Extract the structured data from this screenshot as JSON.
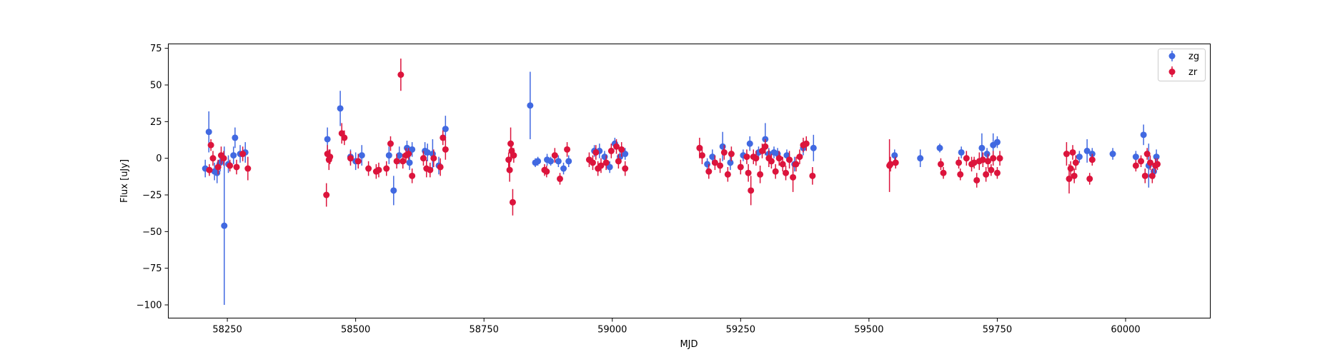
{
  "chart_data": {
    "type": "scatter",
    "title": "",
    "xlabel": "MJD",
    "ylabel": "Flux [uJy]",
    "xlim": [
      58135,
      60165
    ],
    "ylim": [
      -109,
      78
    ],
    "xticks": [
      58250,
      58500,
      58750,
      59000,
      59250,
      59500,
      59750,
      60000
    ],
    "yticks": [
      75,
      50,
      25,
      0,
      -25,
      -50,
      -75,
      -100
    ],
    "ytick_labels": [
      "75",
      "50",
      "25",
      "0",
      "−25",
      "−50",
      "−75",
      "−100"
    ],
    "grid": false,
    "legend": {
      "placement": "top-right"
    },
    "colors": {
      "zg": "#4169e1",
      "zr": "#dc143c"
    },
    "series": [
      {
        "name": "zg",
        "points": [
          {
            "x": 58207,
            "y": -7,
            "err": 6
          },
          {
            "x": 58214,
            "y": 18,
            "err": 14
          },
          {
            "x": 58225,
            "y": -9,
            "err": 6
          },
          {
            "x": 58230,
            "y": -10,
            "err": 7
          },
          {
            "x": 58236,
            "y": -3,
            "err": 6
          },
          {
            "x": 58244,
            "y": -46,
            "err": 54
          },
          {
            "x": 58252,
            "y": -4,
            "err": 6
          },
          {
            "x": 58262,
            "y": 2,
            "err": 6
          },
          {
            "x": 58265,
            "y": 14,
            "err": 7
          },
          {
            "x": 58275,
            "y": 3,
            "err": 6
          },
          {
            "x": 58285,
            "y": 4,
            "err": 7
          },
          {
            "x": 58445,
            "y": 13,
            "err": 8
          },
          {
            "x": 58470,
            "y": 34,
            "err": 12
          },
          {
            "x": 58490,
            "y": 1,
            "err": 5
          },
          {
            "x": 58500,
            "y": -2,
            "err": 6
          },
          {
            "x": 58512,
            "y": 2,
            "err": 7
          },
          {
            "x": 58565,
            "y": 2,
            "err": 6
          },
          {
            "x": 58574,
            "y": -22,
            "err": 10
          },
          {
            "x": 58585,
            "y": 2,
            "err": 6
          },
          {
            "x": 58600,
            "y": 7,
            "err": 5
          },
          {
            "x": 58605,
            "y": -3,
            "err": 5
          },
          {
            "x": 58610,
            "y": 6,
            "err": 5
          },
          {
            "x": 58635,
            "y": 5,
            "err": 6
          },
          {
            "x": 58640,
            "y": 4,
            "err": 6
          },
          {
            "x": 58650,
            "y": 3,
            "err": 10
          },
          {
            "x": 58662,
            "y": -5,
            "err": 6
          },
          {
            "x": 58675,
            "y": 20,
            "err": 9
          },
          {
            "x": 58840,
            "y": 36,
            "err": 23
          },
          {
            "x": 58850,
            "y": -3,
            "err": 3
          },
          {
            "x": 58855,
            "y": -2,
            "err": 3
          },
          {
            "x": 58873,
            "y": -1,
            "err": 4
          },
          {
            "x": 58880,
            "y": -2,
            "err": 3
          },
          {
            "x": 58895,
            "y": -2,
            "err": 4
          },
          {
            "x": 58905,
            "y": -7,
            "err": 4
          },
          {
            "x": 58915,
            "y": -2,
            "err": 4
          },
          {
            "x": 58965,
            "y": 5,
            "err": 4
          },
          {
            "x": 58975,
            "y": 5,
            "err": 5
          },
          {
            "x": 58985,
            "y": 1,
            "err": 4
          },
          {
            "x": 58995,
            "y": -6,
            "err": 4
          },
          {
            "x": 59005,
            "y": 10,
            "err": 4
          },
          {
            "x": 59015,
            "y": 1,
            "err": 4
          },
          {
            "x": 59025,
            "y": 3,
            "err": 4
          },
          {
            "x": 59185,
            "y": -4,
            "err": 4
          },
          {
            "x": 59195,
            "y": 1,
            "err": 5
          },
          {
            "x": 59215,
            "y": 8,
            "err": 10
          },
          {
            "x": 59230,
            "y": -3,
            "err": 5
          },
          {
            "x": 59255,
            "y": 2,
            "err": 4
          },
          {
            "x": 59268,
            "y": 10,
            "err": 5
          },
          {
            "x": 59285,
            "y": 4,
            "err": 4
          },
          {
            "x": 59298,
            "y": 13,
            "err": 11
          },
          {
            "x": 59305,
            "y": 3,
            "err": 4
          },
          {
            "x": 59315,
            "y": 4,
            "err": 4
          },
          {
            "x": 59322,
            "y": 3,
            "err": 4
          },
          {
            "x": 59340,
            "y": 2,
            "err": 4
          },
          {
            "x": 59355,
            "y": -4,
            "err": 5
          },
          {
            "x": 59372,
            "y": 7,
            "err": 5
          },
          {
            "x": 59392,
            "y": 7,
            "err": 9
          },
          {
            "x": 59550,
            "y": 2,
            "err": 4
          },
          {
            "x": 59600,
            "y": 0,
            "err": 6
          },
          {
            "x": 59638,
            "y": 7,
            "err": 3
          },
          {
            "x": 59680,
            "y": 4,
            "err": 4
          },
          {
            "x": 59720,
            "y": 7,
            "err": 10
          },
          {
            "x": 59730,
            "y": 3,
            "err": 4
          },
          {
            "x": 59742,
            "y": 9,
            "err": 8
          },
          {
            "x": 59750,
            "y": 11,
            "err": 4
          },
          {
            "x": 59910,
            "y": 1,
            "err": 4
          },
          {
            "x": 59925,
            "y": 5,
            "err": 8
          },
          {
            "x": 59935,
            "y": 3,
            "err": 4
          },
          {
            "x": 59975,
            "y": 3,
            "err": 4
          },
          {
            "x": 60020,
            "y": 1,
            "err": 4
          },
          {
            "x": 60035,
            "y": 16,
            "err": 7
          },
          {
            "x": 60045,
            "y": -5,
            "err": 15
          },
          {
            "x": 60055,
            "y": -9,
            "err": 5
          },
          {
            "x": 60060,
            "y": 1,
            "err": 5
          }
        ]
      },
      {
        "name": "zr",
        "points": [
          {
            "x": 58215,
            "y": -8,
            "err": 4
          },
          {
            "x": 58218,
            "y": 9,
            "err": 4
          },
          {
            "x": 58222,
            "y": 0,
            "err": 5
          },
          {
            "x": 58232,
            "y": -6,
            "err": 5
          },
          {
            "x": 58238,
            "y": 2,
            "err": 6
          },
          {
            "x": 58243,
            "y": 0,
            "err": 5
          },
          {
            "x": 58255,
            "y": -5,
            "err": 4
          },
          {
            "x": 58268,
            "y": -6,
            "err": 5
          },
          {
            "x": 58280,
            "y": 3,
            "err": 5
          },
          {
            "x": 58290,
            "y": -7,
            "err": 8
          },
          {
            "x": 58443,
            "y": -25,
            "err": 8
          },
          {
            "x": 58445,
            "y": 3,
            "err": 6
          },
          {
            "x": 58448,
            "y": -1,
            "err": 7
          },
          {
            "x": 58450,
            "y": 1,
            "err": 5
          },
          {
            "x": 58473,
            "y": 17,
            "err": 7
          },
          {
            "x": 58478,
            "y": 14,
            "err": 5
          },
          {
            "x": 58490,
            "y": 0,
            "err": 5
          },
          {
            "x": 58505,
            "y": -2,
            "err": 5
          },
          {
            "x": 58525,
            "y": -7,
            "err": 5
          },
          {
            "x": 58540,
            "y": -9,
            "err": 5
          },
          {
            "x": 58545,
            "y": -8,
            "err": 5
          },
          {
            "x": 58560,
            "y": -7,
            "err": 5
          },
          {
            "x": 58568,
            "y": 10,
            "err": 5
          },
          {
            "x": 58580,
            "y": -2,
            "err": 5
          },
          {
            "x": 58588,
            "y": 57,
            "err": 11
          },
          {
            "x": 58592,
            "y": -2,
            "err": 5
          },
          {
            "x": 58598,
            "y": 2,
            "err": 5
          },
          {
            "x": 58603,
            "y": 3,
            "err": 4
          },
          {
            "x": 58610,
            "y": -12,
            "err": 5
          },
          {
            "x": 58632,
            "y": 0,
            "err": 5
          },
          {
            "x": 58638,
            "y": -7,
            "err": 6
          },
          {
            "x": 58645,
            "y": -8,
            "err": 5
          },
          {
            "x": 58652,
            "y": 0,
            "err": 6
          },
          {
            "x": 58665,
            "y": -6,
            "err": 6
          },
          {
            "x": 58670,
            "y": 14,
            "err": 5
          },
          {
            "x": 58675,
            "y": 6,
            "err": 7
          },
          {
            "x": 58798,
            "y": -1,
            "err": 5
          },
          {
            "x": 58800,
            "y": -8,
            "err": 8
          },
          {
            "x": 58802,
            "y": 10,
            "err": 11
          },
          {
            "x": 58804,
            "y": 5,
            "err": 6
          },
          {
            "x": 58806,
            "y": -30,
            "err": 9
          },
          {
            "x": 58808,
            "y": 2,
            "err": 5
          },
          {
            "x": 58868,
            "y": -8,
            "err": 4
          },
          {
            "x": 58872,
            "y": -9,
            "err": 4
          },
          {
            "x": 58888,
            "y": 2,
            "err": 5
          },
          {
            "x": 58898,
            "y": -14,
            "err": 4
          },
          {
            "x": 58912,
            "y": 6,
            "err": 5
          },
          {
            "x": 58955,
            "y": -1,
            "err": 5
          },
          {
            "x": 58962,
            "y": -3,
            "err": 5
          },
          {
            "x": 58968,
            "y": 4,
            "err": 5
          },
          {
            "x": 58972,
            "y": -7,
            "err": 5
          },
          {
            "x": 58978,
            "y": -5,
            "err": 5
          },
          {
            "x": 58988,
            "y": -3,
            "err": 5
          },
          {
            "x": 58998,
            "y": 5,
            "err": 5
          },
          {
            "x": 59008,
            "y": 8,
            "err": 5
          },
          {
            "x": 59012,
            "y": -2,
            "err": 5
          },
          {
            "x": 59018,
            "y": 6,
            "err": 5
          },
          {
            "x": 59025,
            "y": -7,
            "err": 5
          },
          {
            "x": 59170,
            "y": 7,
            "err": 7
          },
          {
            "x": 59175,
            "y": 2,
            "err": 6
          },
          {
            "x": 59188,
            "y": -9,
            "err": 5
          },
          {
            "x": 59200,
            "y": -3,
            "err": 5
          },
          {
            "x": 59210,
            "y": -5,
            "err": 5
          },
          {
            "x": 59218,
            "y": 4,
            "err": 5
          },
          {
            "x": 59225,
            "y": -11,
            "err": 5
          },
          {
            "x": 59232,
            "y": 3,
            "err": 5
          },
          {
            "x": 59250,
            "y": -6,
            "err": 5
          },
          {
            "x": 59262,
            "y": 1,
            "err": 5
          },
          {
            "x": 59265,
            "y": -10,
            "err": 6
          },
          {
            "x": 59270,
            "y": -22,
            "err": 10
          },
          {
            "x": 59275,
            "y": 1,
            "err": 5
          },
          {
            "x": 59280,
            "y": 0,
            "err": 5
          },
          {
            "x": 59288,
            "y": -11,
            "err": 6
          },
          {
            "x": 59292,
            "y": 5,
            "err": 5
          },
          {
            "x": 59298,
            "y": 8,
            "err": 5
          },
          {
            "x": 59305,
            "y": 0,
            "err": 6
          },
          {
            "x": 59310,
            "y": -2,
            "err": 5
          },
          {
            "x": 59318,
            "y": -9,
            "err": 5
          },
          {
            "x": 59325,
            "y": 0,
            "err": 5
          },
          {
            "x": 59332,
            "y": -4,
            "err": 5
          },
          {
            "x": 59338,
            "y": -10,
            "err": 5
          },
          {
            "x": 59345,
            "y": -1,
            "err": 6
          },
          {
            "x": 59352,
            "y": -13,
            "err": 10
          },
          {
            "x": 59358,
            "y": -4,
            "err": 5
          },
          {
            "x": 59365,
            "y": 1,
            "err": 5
          },
          {
            "x": 59372,
            "y": 9,
            "err": 5
          },
          {
            "x": 59378,
            "y": 10,
            "err": 5
          },
          {
            "x": 59390,
            "y": -12,
            "err": 6
          },
          {
            "x": 59540,
            "y": -5,
            "err": 18
          },
          {
            "x": 59542,
            "y": -4,
            "err": 5
          },
          {
            "x": 59552,
            "y": -3,
            "err": 4
          },
          {
            "x": 59640,
            "y": -4,
            "err": 4
          },
          {
            "x": 59645,
            "y": -10,
            "err": 4
          },
          {
            "x": 59675,
            "y": -3,
            "err": 4
          },
          {
            "x": 59678,
            "y": -11,
            "err": 4
          },
          {
            "x": 59690,
            "y": 0,
            "err": 5
          },
          {
            "x": 59700,
            "y": -4,
            "err": 5
          },
          {
            "x": 59705,
            "y": -3,
            "err": 4
          },
          {
            "x": 59710,
            "y": -15,
            "err": 5
          },
          {
            "x": 59715,
            "y": -2,
            "err": 6
          },
          {
            "x": 59722,
            "y": -1,
            "err": 5
          },
          {
            "x": 59728,
            "y": -11,
            "err": 5
          },
          {
            "x": 59732,
            "y": -2,
            "err": 5
          },
          {
            "x": 59738,
            "y": -8,
            "err": 4
          },
          {
            "x": 59742,
            "y": 0,
            "err": 5
          },
          {
            "x": 59750,
            "y": -10,
            "err": 4
          },
          {
            "x": 59755,
            "y": 0,
            "err": 5
          },
          {
            "x": 59885,
            "y": 3,
            "err": 8
          },
          {
            "x": 59890,
            "y": -14,
            "err": 10
          },
          {
            "x": 59893,
            "y": -7,
            "err": 5
          },
          {
            "x": 59897,
            "y": 4,
            "err": 5
          },
          {
            "x": 59900,
            "y": -12,
            "err": 5
          },
          {
            "x": 59903,
            "y": -3,
            "err": 5
          },
          {
            "x": 59930,
            "y": -14,
            "err": 4
          },
          {
            "x": 59935,
            "y": -1,
            "err": 4
          },
          {
            "x": 60020,
            "y": -5,
            "err": 4
          },
          {
            "x": 60030,
            "y": -2,
            "err": 4
          },
          {
            "x": 60038,
            "y": -12,
            "err": 5
          },
          {
            "x": 60042,
            "y": 3,
            "err": 4
          },
          {
            "x": 60048,
            "y": -3,
            "err": 5
          },
          {
            "x": 60052,
            "y": -12,
            "err": 5
          },
          {
            "x": 60058,
            "y": -5,
            "err": 5
          },
          {
            "x": 60062,
            "y": -4,
            "err": 4
          }
        ]
      }
    ]
  }
}
